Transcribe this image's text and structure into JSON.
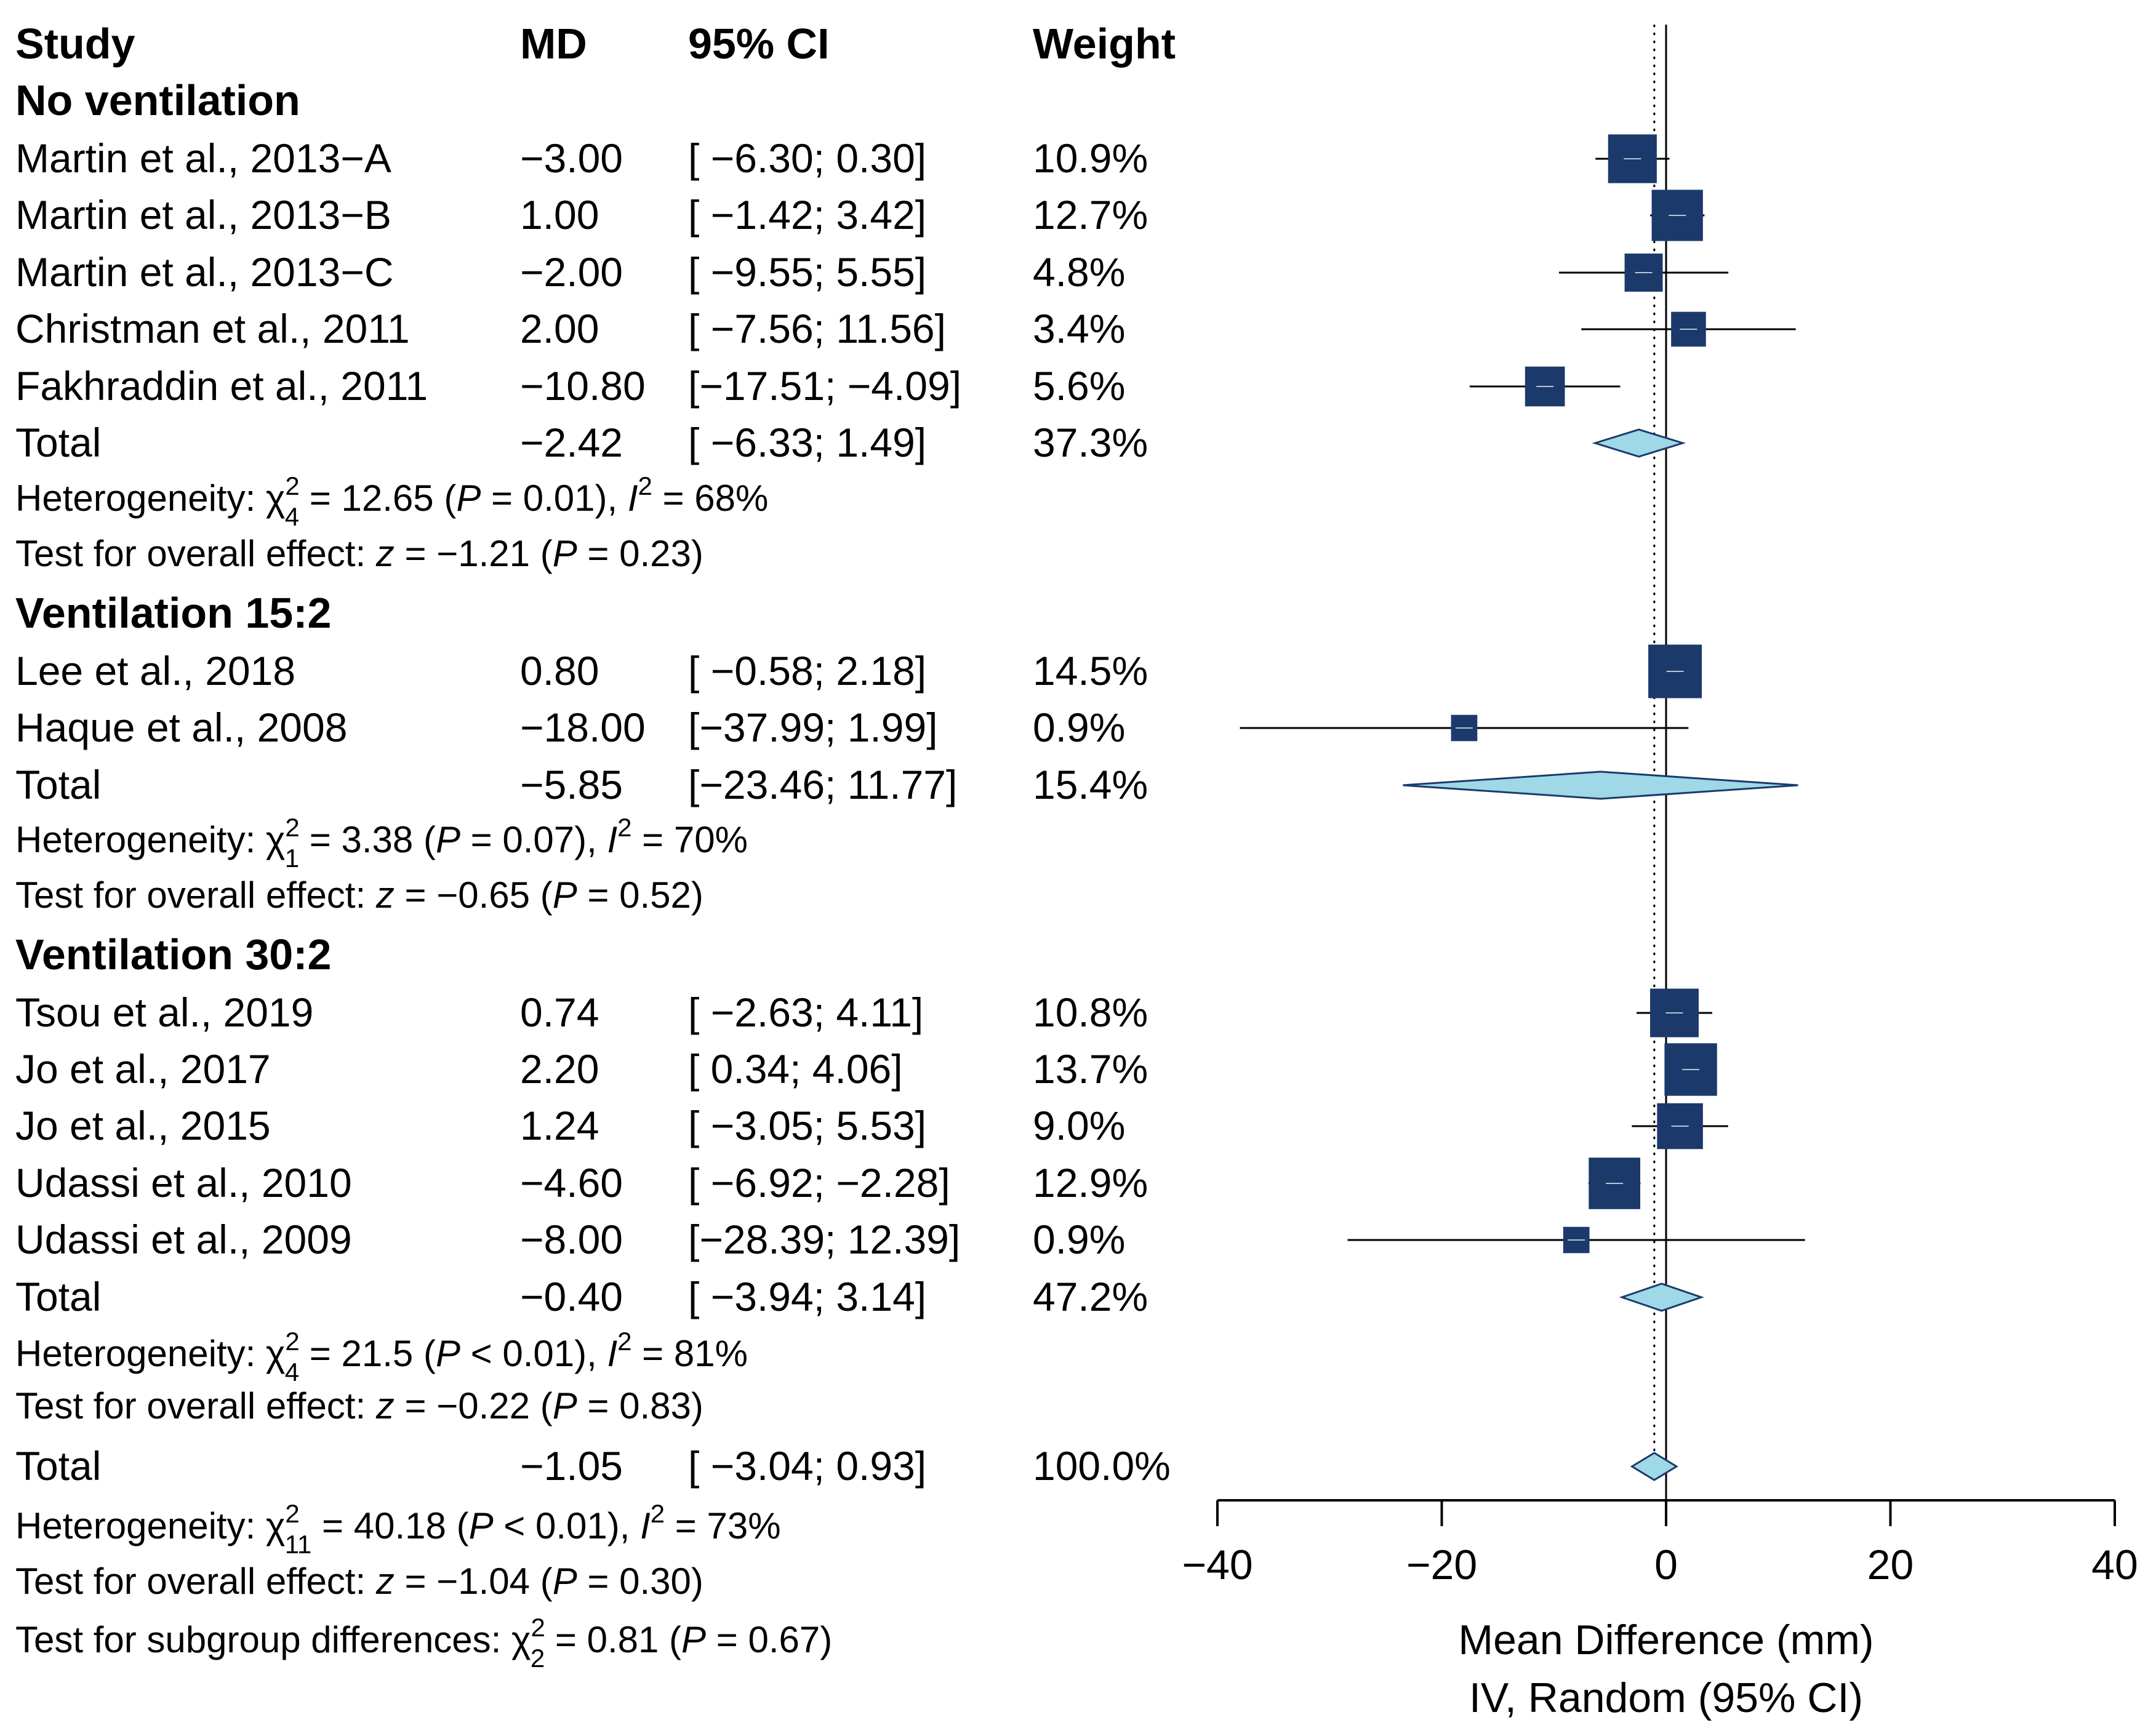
{
  "colors": {
    "square": "#1b3a6b",
    "diamond": "#9fd8e6",
    "diamond_stroke": "#1b3a6b",
    "line": "#000000"
  },
  "chart_data": {
    "type": "forest",
    "headers": {
      "study": "Study",
      "md": "MD",
      "ci": "95% CI",
      "weight": "Weight"
    },
    "axis": {
      "xlim": [
        -40,
        40
      ],
      "ticks": [
        -40,
        -20,
        0,
        20,
        40
      ],
      "tick_labels": [
        "−40",
        "−20",
        "0",
        "20",
        "40"
      ],
      "label_line1": "Mean Difference (mm)",
      "label_line2": "IV, Random (95% CI)",
      "reference_line": 0,
      "pooled_line": -1.05
    },
    "subgroups": [
      {
        "name": "No ventilation",
        "studies": [
          {
            "study": "Martin et al., 2013−A",
            "md_text": "−3.00",
            "ci_text": "[ −6.30;  0.30]",
            "weight_text": "10.9%",
            "md": -3.0,
            "lo": -6.3,
            "hi": 0.3,
            "weight": 10.9
          },
          {
            "study": "Martin et al., 2013−B",
            "md_text": "1.00",
            "ci_text": "[ −1.42;  3.42]",
            "weight_text": "12.7%",
            "md": 1.0,
            "lo": -1.42,
            "hi": 3.42,
            "weight": 12.7
          },
          {
            "study": "Martin et al., 2013−C",
            "md_text": "−2.00",
            "ci_text": "[ −9.55;  5.55]",
            "weight_text": "4.8%",
            "md": -2.0,
            "lo": -9.55,
            "hi": 5.55,
            "weight": 4.8
          },
          {
            "study": "Christman et al., 2011",
            "md_text": "2.00",
            "ci_text": "[ −7.56; 11.56]",
            "weight_text": "3.4%",
            "md": 2.0,
            "lo": -7.56,
            "hi": 11.56,
            "weight": 3.4
          },
          {
            "study": "Fakhraddin et al., 2011",
            "md_text": "−10.80",
            "ci_text": "[−17.51; −4.09]",
            "weight_text": "5.6%",
            "md": -10.8,
            "lo": -17.51,
            "hi": -4.09,
            "weight": 5.6
          }
        ],
        "total": {
          "label": "Total",
          "md_text": "−2.42",
          "ci_text": "[ −6.33;  1.49]",
          "weight_text": "37.3%",
          "md": -2.42,
          "lo": -6.33,
          "hi": 1.49
        },
        "heterogeneity": {
          "prefix": "Heterogeneity: ",
          "chi": "χ",
          "sup": "2",
          "sub": "4",
          "mid": " = 12.65 (",
          "p": "P",
          "p_rest": " = 0.01), ",
          "i": "I",
          "i_sup": "2",
          "i_rest": " = 68%"
        },
        "overall": {
          "prefix": "Test for overall effect: ",
          "z": "z",
          "z_rest": " = −1.21 (",
          "p": "P",
          "p_rest": " = 0.23)"
        }
      },
      {
        "name": "Ventilation 15:2",
        "studies": [
          {
            "study": "Lee et al., 2018",
            "md_text": "0.80",
            "ci_text": "[ −0.58;  2.18]",
            "weight_text": "14.5%",
            "md": 0.8,
            "lo": -0.58,
            "hi": 2.18,
            "weight": 14.5
          },
          {
            "study": "Haque et al., 2008",
            "md_text": "−18.00",
            "ci_text": "[−37.99;  1.99]",
            "weight_text": "0.9%",
            "md": -18.0,
            "lo": -37.99,
            "hi": 1.99,
            "weight": 0.9
          }
        ],
        "total": {
          "label": "Total",
          "md_text": "−5.85",
          "ci_text": "[−23.46; 11.77]",
          "weight_text": "15.4%",
          "md": -5.85,
          "lo": -23.46,
          "hi": 11.77
        },
        "heterogeneity": {
          "prefix": "Heterogeneity: ",
          "chi": "χ",
          "sup": "2",
          "sub": "1",
          "mid": " = 3.38 (",
          "p": "P",
          "p_rest": " = 0.07), ",
          "i": "I",
          "i_sup": "2",
          "i_rest": " = 70%"
        },
        "overall": {
          "prefix": "Test for overall effect: ",
          "z": "z",
          "z_rest": " = −0.65 (",
          "p": "P",
          "p_rest": " = 0.52)"
        }
      },
      {
        "name": "Ventilation 30:2",
        "studies": [
          {
            "study": "Tsou et al., 2019",
            "md_text": "0.74",
            "ci_text": "[ −2.63;  4.11]",
            "weight_text": "10.8%",
            "md": 0.74,
            "lo": -2.63,
            "hi": 4.11,
            "weight": 10.8
          },
          {
            "study": "Jo et al., 2017",
            "md_text": "2.20",
            "ci_text": "[  0.34;  4.06]",
            "weight_text": "13.7%",
            "md": 2.2,
            "lo": 0.34,
            "hi": 4.06,
            "weight": 13.7
          },
          {
            "study": "Jo et al., 2015",
            "md_text": "1.24",
            "ci_text": "[ −3.05;  5.53]",
            "weight_text": "9.0%",
            "md": 1.24,
            "lo": -3.05,
            "hi": 5.53,
            "weight": 9.0
          },
          {
            "study": "Udassi et al., 2010",
            "md_text": "−4.60",
            "ci_text": "[ −6.92; −2.28]",
            "weight_text": "12.9%",
            "md": -4.6,
            "lo": -6.92,
            "hi": -2.28,
            "weight": 12.9
          },
          {
            "study": "Udassi et al., 2009",
            "md_text": "−8.00",
            "ci_text": "[−28.39; 12.39]",
            "weight_text": "0.9%",
            "md": -8.0,
            "lo": -28.39,
            "hi": 12.39,
            "weight": 0.9
          }
        ],
        "total": {
          "label": "Total",
          "md_text": "−0.40",
          "ci_text": "[ −3.94;  3.14]",
          "weight_text": "47.2%",
          "md": -0.4,
          "lo": -3.94,
          "hi": 3.14
        },
        "heterogeneity": {
          "prefix": "Heterogeneity: ",
          "chi": "χ",
          "sup": "2",
          "sub": "4",
          "mid": " = 21.5 (",
          "p": "P",
          "p_rest": " < 0.01), ",
          "i": "I",
          "i_sup": "2",
          "i_rest": " = 81%"
        },
        "overall": {
          "prefix": "Test for overall effect: ",
          "z": "z",
          "z_rest": " = −0.22 (",
          "p": "P",
          "p_rest": " = 0.83)"
        }
      }
    ],
    "overall_total": {
      "label": "Total",
      "md_text": "−1.05",
      "ci_text": "[ −3.04;  0.93]",
      "weight_text": "100.0%",
      "md": -1.05,
      "lo": -3.04,
      "hi": 0.93,
      "heterogeneity": {
        "prefix": "Heterogeneity: ",
        "chi": "χ",
        "sup": "2",
        "sub": "11",
        "mid": " = 40.18 (",
        "p": "P",
        "p_rest": " < 0.01), ",
        "i": "I",
        "i_sup": "2",
        "i_rest": " = 73%"
      },
      "overall": {
        "prefix": "Test for overall effect: ",
        "z": "z",
        "z_rest": " = −1.04 (",
        "p": "P",
        "p_rest": " = 0.30)"
      },
      "subgroup_diff": {
        "prefix": "Test for subgroup differences: ",
        "chi": "χ",
        "sup": "2",
        "sub": "2",
        "rest": " = 0.81 (",
        "p": "P",
        "p_rest": " = 0.67)"
      }
    }
  }
}
